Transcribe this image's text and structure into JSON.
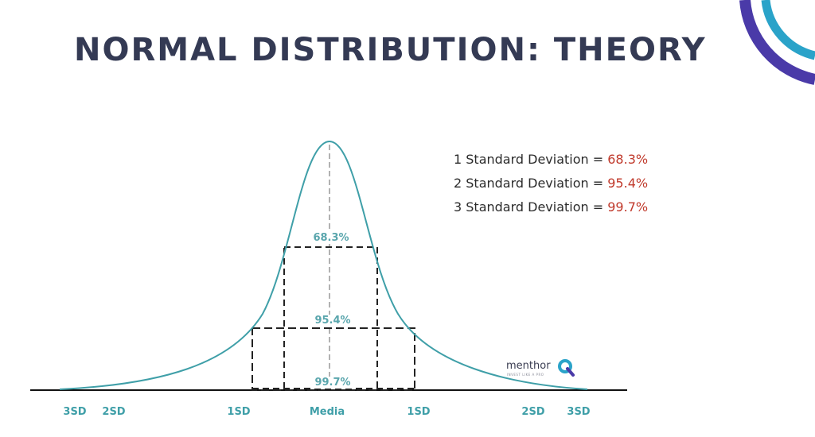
{
  "title": "NORMAL DISTRIBUTION: THEORY",
  "legend": [
    {
      "label": "1 Standard Deviation = ",
      "value": "68.3%"
    },
    {
      "label": "2 Standard Deviation = ",
      "value": "95.4%"
    },
    {
      "label": "3 Standard Deviation = ",
      "value": "99.7%"
    }
  ],
  "regions": {
    "one_sd": "68.3%",
    "two_sd": "95.4%",
    "three_sd": "99.7%"
  },
  "axis_labels": {
    "left_3sd": "3SD",
    "left_2sd": "2SD",
    "left_1sd": "1SD",
    "center": "Media",
    "right_1sd": "1SD",
    "right_2sd": "2SD",
    "right_3sd": "3SD"
  },
  "brand": {
    "name": "menthor",
    "tagline": "INVEST LIKE A PRO"
  },
  "colors": {
    "title": "#343a54",
    "curve": "#3f9fa8",
    "highlight": "#c0392b",
    "arc_outer": "#4a3aa8",
    "arc_inner": "#2aa3c9"
  }
}
